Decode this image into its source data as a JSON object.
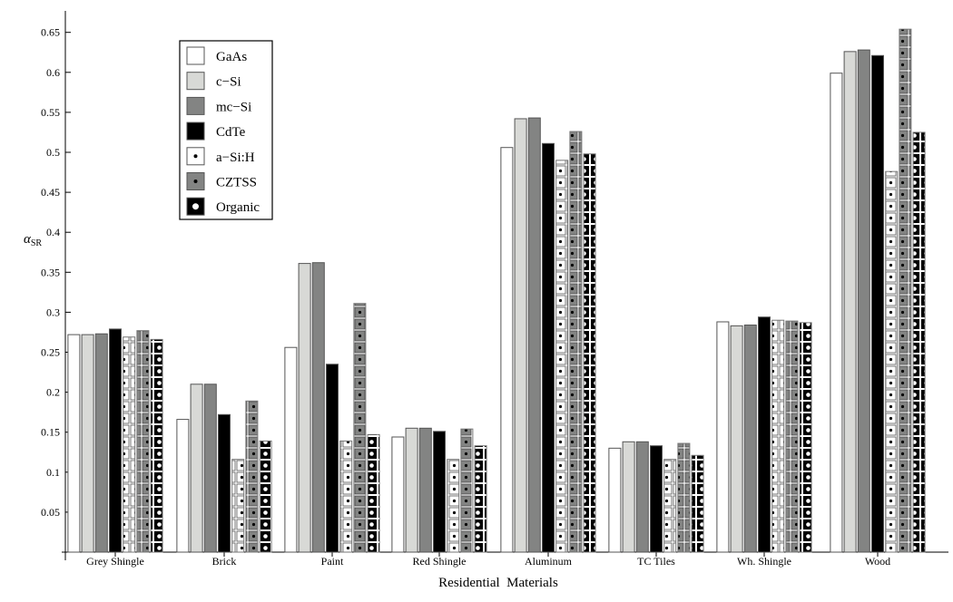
{
  "chart_data": {
    "type": "bar",
    "title": "",
    "xlabel": "Residential  Materials",
    "ylabel": "α",
    "ylabel_sub": "SR",
    "ylim": [
      0,
      0.67
    ],
    "yticks": [
      "0.05",
      "0.1",
      "0.15",
      "0.2",
      "0.25",
      "0.3",
      "0.35",
      "0.4",
      "0.45",
      "0.5",
      "0.55",
      "0.6",
      "0.65"
    ],
    "grid": false,
    "legend_position": "top-left",
    "categories": [
      "Grey Shingle",
      "Brick",
      "Paint",
      "Red Shingle",
      "Aluminum",
      "TC Tiles",
      "Wh. Shingle",
      "Wood"
    ],
    "series": [
      {
        "name": "GaAs",
        "fill": "#ffffff",
        "pattern": "solid",
        "values": [
          0.272,
          0.166,
          0.256,
          0.144,
          0.506,
          0.13,
          0.288,
          0.599
        ]
      },
      {
        "name": "c−Si",
        "fill": "#d8d9d6",
        "pattern": "solid",
        "values": [
          0.272,
          0.21,
          0.361,
          0.155,
          0.542,
          0.138,
          0.283,
          0.626
        ]
      },
      {
        "name": "mc−Si",
        "fill": "#838483",
        "pattern": "solid",
        "values": [
          0.273,
          0.21,
          0.362,
          0.155,
          0.543,
          0.138,
          0.284,
          0.628
        ]
      },
      {
        "name": "CdTe",
        "fill": "#000000",
        "pattern": "solid",
        "values": [
          0.279,
          0.172,
          0.235,
          0.151,
          0.511,
          0.133,
          0.294,
          0.621
        ]
      },
      {
        "name": "a−Si:H",
        "fill": "#ffffff",
        "pattern": "dot-black",
        "values": [
          0.269,
          0.116,
          0.139,
          0.116,
          0.49,
          0.116,
          0.29,
          0.476
        ]
      },
      {
        "name": "CZTSS",
        "fill": "#838483",
        "pattern": "dot-black",
        "values": [
          0.277,
          0.189,
          0.311,
          0.154,
          0.526,
          0.136,
          0.289,
          0.654
        ]
      },
      {
        "name": "Organic",
        "fill": "#000000",
        "pattern": "dot-white",
        "values": [
          0.266,
          0.139,
          0.147,
          0.133,
          0.498,
          0.121,
          0.287,
          0.525
        ]
      }
    ]
  }
}
